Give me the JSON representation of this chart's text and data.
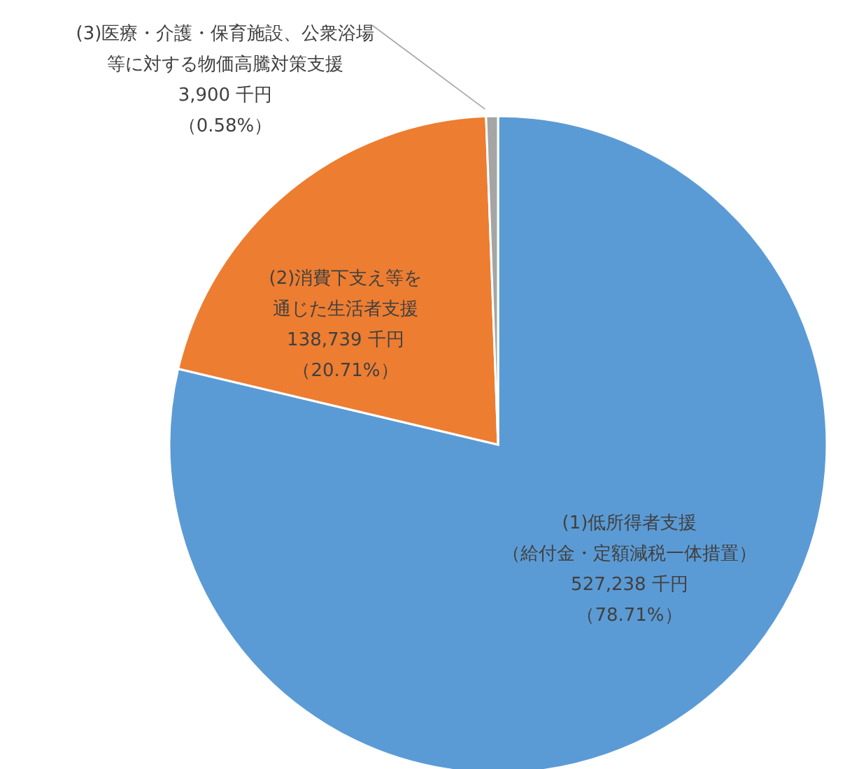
{
  "chart_data": {
    "type": "pie",
    "categories": [
      "(1)低所得者支援（給付金・定額減税一体措置）",
      "(2)消費下支え等を通じた生活者支援",
      "(3)医療・介護・保育施設、公衆浴場等に対する物価高騰対策支援"
    ],
    "values": [
      527238,
      138739,
      3900
    ],
    "value_labels": [
      "527,238 千円（78.71%）",
      "138,739 千円（20.71%）",
      "3,900 千円（0.58%）"
    ],
    "colors": [
      "#5b9bd5",
      "#ed7d31",
      "#a5a5a5"
    ],
    "legend": false
  }
}
